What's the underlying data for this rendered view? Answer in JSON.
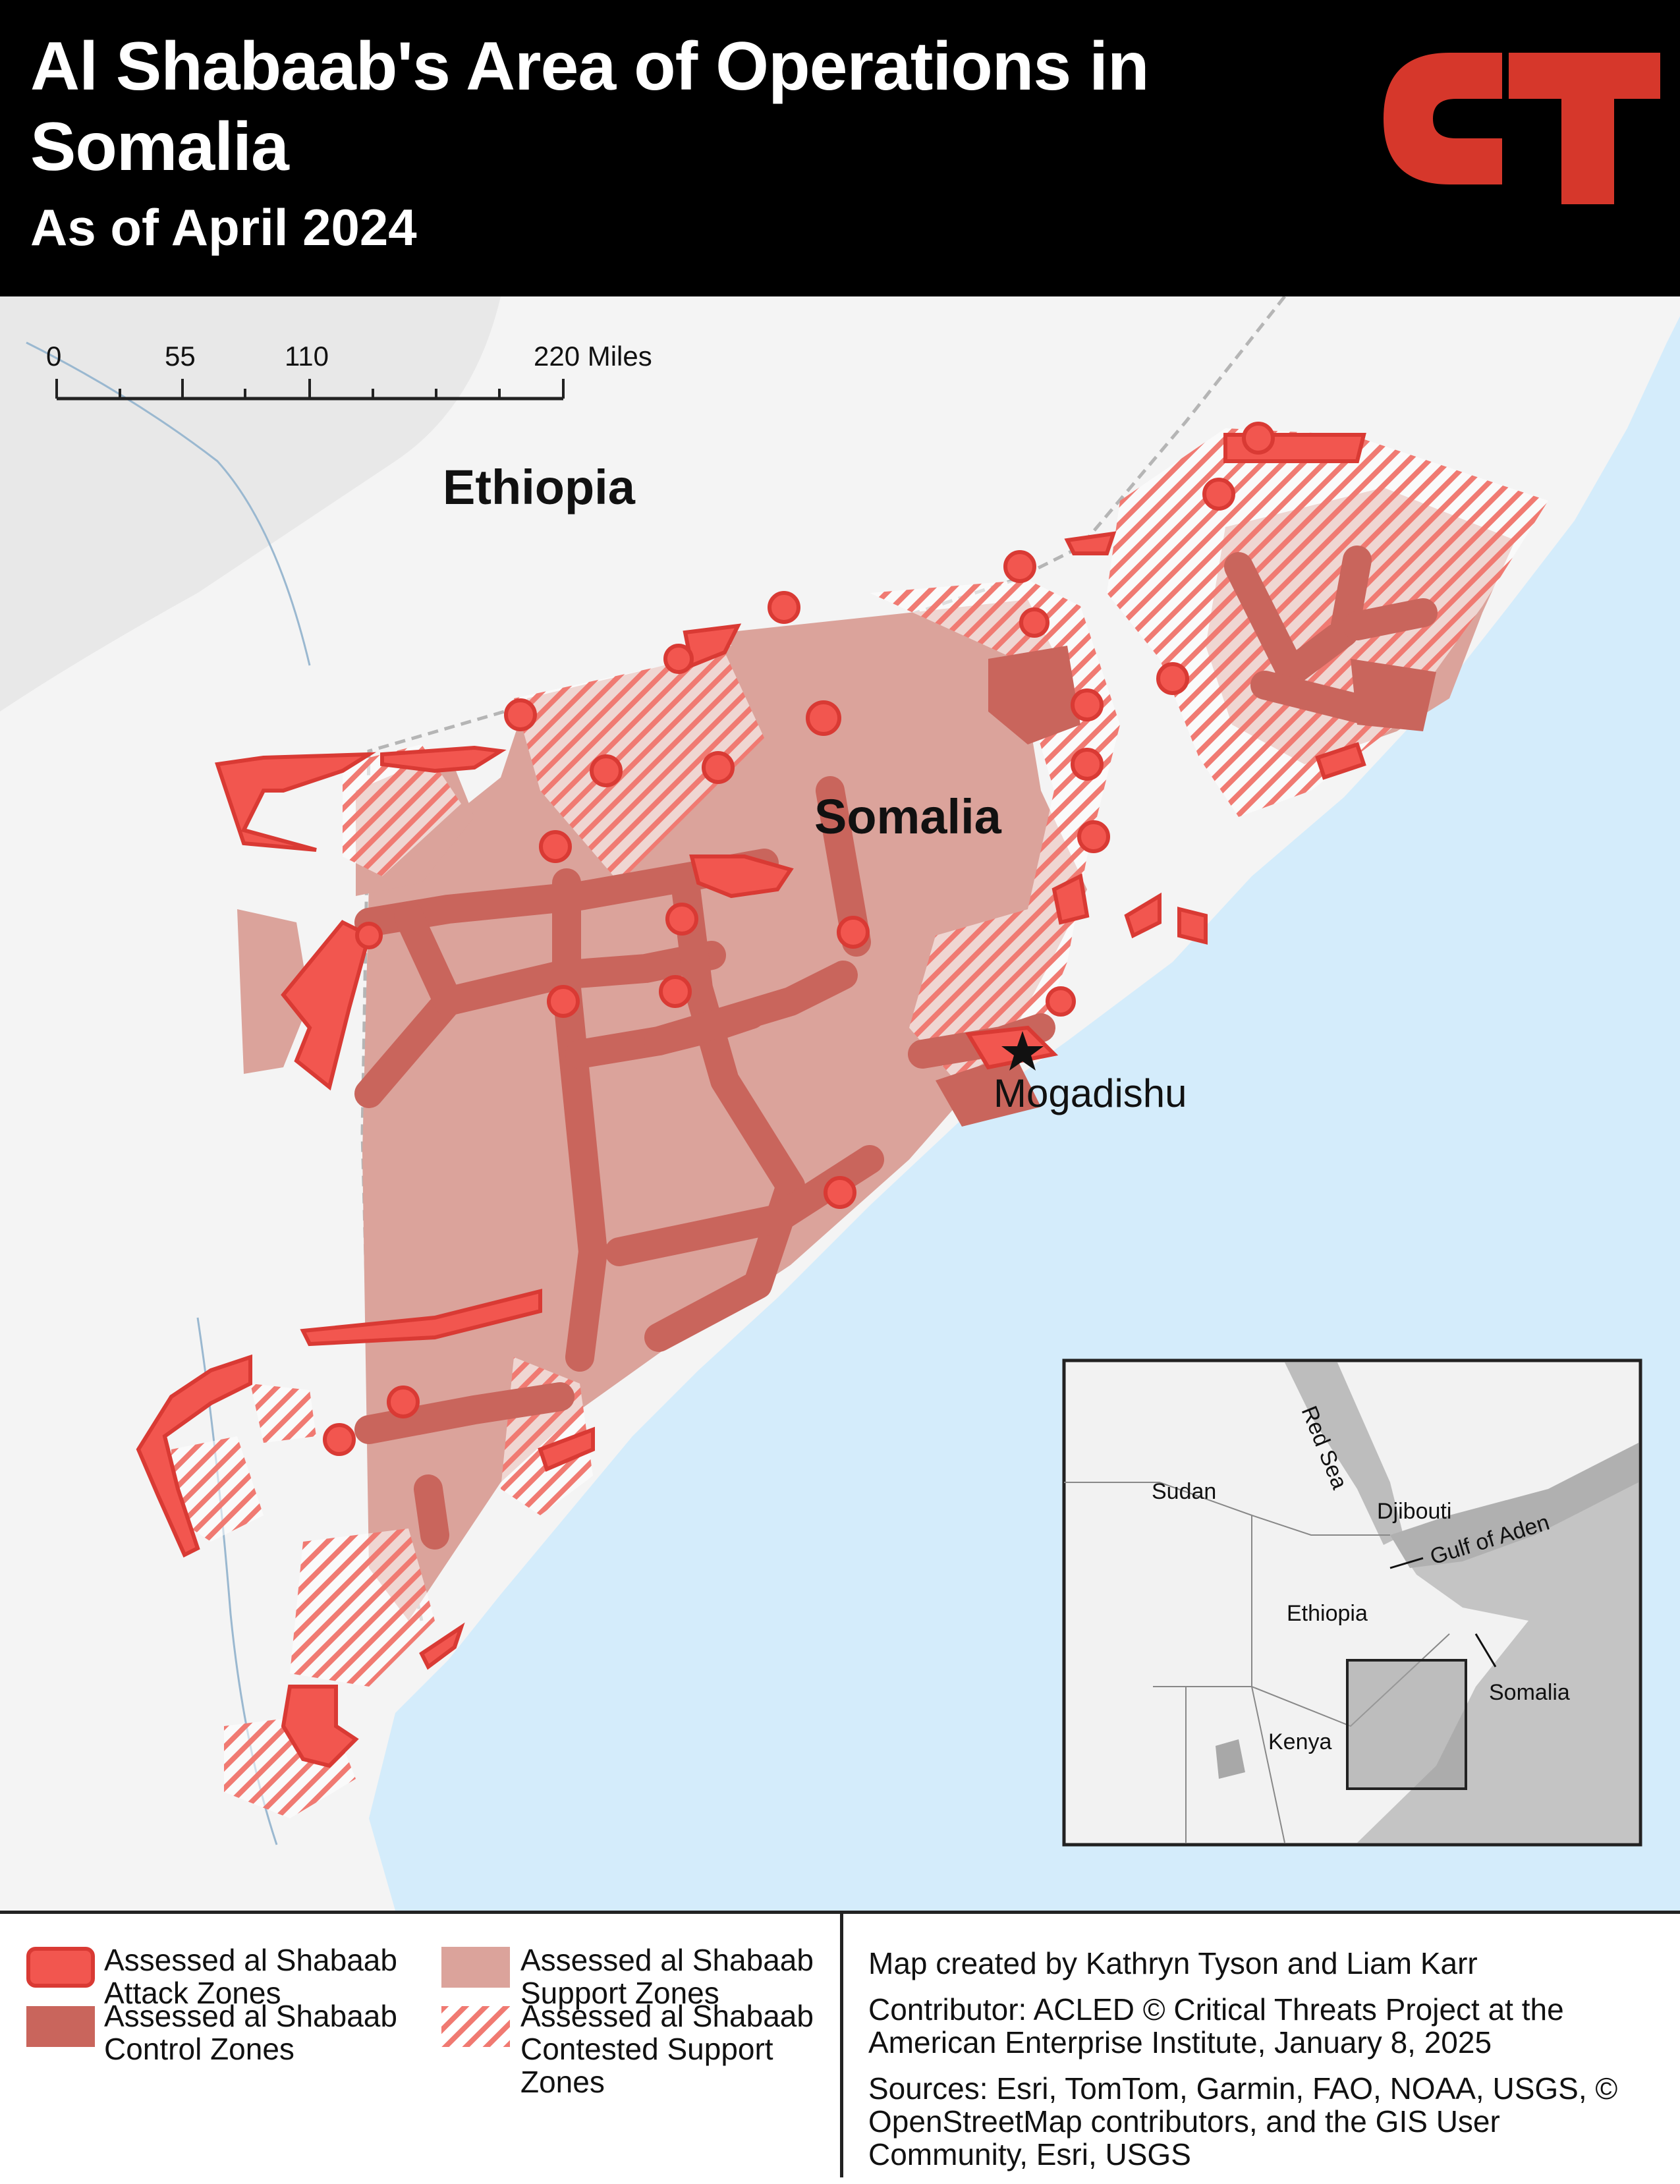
{
  "title": "Al Shabaab's Area of Operations in Somalia",
  "subtitle": "As of April 2024",
  "logo_text": "CT",
  "scale_bar": {
    "ticks": [
      "0",
      "55",
      "110",
      "220 Miles"
    ]
  },
  "map_labels": {
    "ethiopia": "Ethiopia",
    "somalia": "Somalia",
    "mogadishu": "Mogadishu"
  },
  "inset": {
    "labels": {
      "red_sea": "Red Sea",
      "sudan": "Sudan",
      "djibouti": "Djibouti",
      "gulf_of_aden": "Gulf of Aden",
      "ethiopia": "Ethiopia",
      "somalia": "Somalia",
      "kenya": "Kenya"
    }
  },
  "legend": {
    "attack": "Assessed al Shabaab Attack Zones",
    "control": "Assessed al Shabaab Control Zones",
    "support": "Assessed al Shabaab Support Zones",
    "contested": "Assessed al Shabaab Contested Support Zones"
  },
  "credits": {
    "created": "Map created by Kathryn Tyson and Liam Karr",
    "contributor": "Contributor: ACLED © Critical Threats Project at the American Enterprise Institute, January 8, 2025",
    "sources": "Sources: Esri, TomTom, Garmin, FAO, NOAA, USGS, © OpenStreetMap contributors, and the GIS User Community, Esri, USGS"
  },
  "colors": {
    "attack_fill": "#f2564f",
    "attack_stroke": "#d93a34",
    "control": "#c9655c",
    "support": "#dba39b",
    "hatch": "#f07a72",
    "ocean": "#d4ecfb",
    "land": "#f4f4f4",
    "brand_red": "#d6372b"
  }
}
